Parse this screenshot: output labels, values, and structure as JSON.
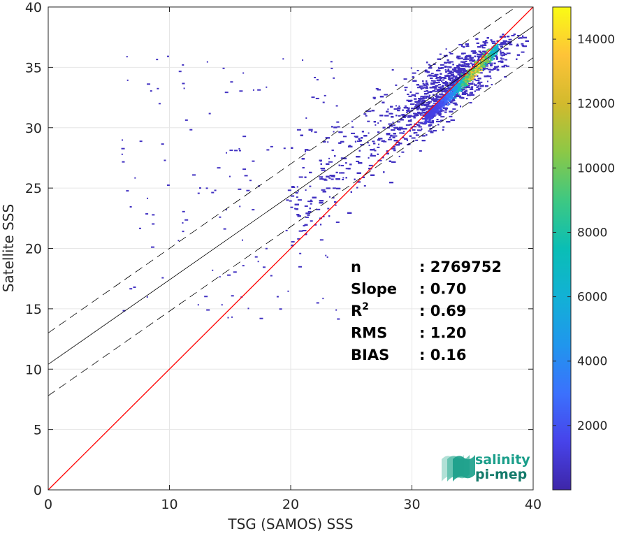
{
  "chart_data": {
    "type": "heatmap",
    "xlabel": "TSG (SAMOS) SSS",
    "ylabel": "Satellite SSS",
    "xlim": [
      0,
      40
    ],
    "ylim": [
      0,
      40
    ],
    "x_ticks": [
      0,
      10,
      20,
      30,
      40
    ],
    "y_ticks": [
      0,
      5,
      10,
      15,
      20,
      25,
      30,
      35,
      40
    ],
    "grid": true,
    "colormap": "parula",
    "colorbar": {
      "min": 0,
      "max": 15000,
      "ticks": [
        2000,
        4000,
        6000,
        8000,
        10000,
        12000,
        14000
      ]
    },
    "identity_line": {
      "color": "#ff0000",
      "slope": 1,
      "intercept": 0
    },
    "regression_line": {
      "color": "#000000",
      "slope": 0.7,
      "intercept": 10.4,
      "band_offset": 2.6,
      "band_style": "dashed"
    },
    "density_core": [
      {
        "x": 35.5,
        "y": 35.2,
        "count": 14500
      },
      {
        "x": 34.5,
        "y": 34.2,
        "count": 9000
      },
      {
        "x": 33.5,
        "y": 33.2,
        "count": 4500
      },
      {
        "x": 32.5,
        "y": 32.3,
        "count": 2500
      },
      {
        "x": 36.5,
        "y": 36.2,
        "count": 7000
      },
      {
        "x": 31.0,
        "y": 31.0,
        "count": 800
      }
    ],
    "stats": [
      {
        "label": "n",
        "sup": "",
        "value": ": 2769752"
      },
      {
        "label": "Slope",
        "sup": "",
        "value": ": 0.70"
      },
      {
        "label": "R",
        "sup": "2",
        "value": ": 0.69"
      },
      {
        "label": "RMS",
        "sup": "",
        "value": ": 1.20"
      },
      {
        "label": "BIAS",
        "sup": "",
        "value": ": 0.16"
      }
    ]
  },
  "logo": {
    "line1": "salinity",
    "line2": "pi-mep",
    "color": "#1a9e8a"
  }
}
